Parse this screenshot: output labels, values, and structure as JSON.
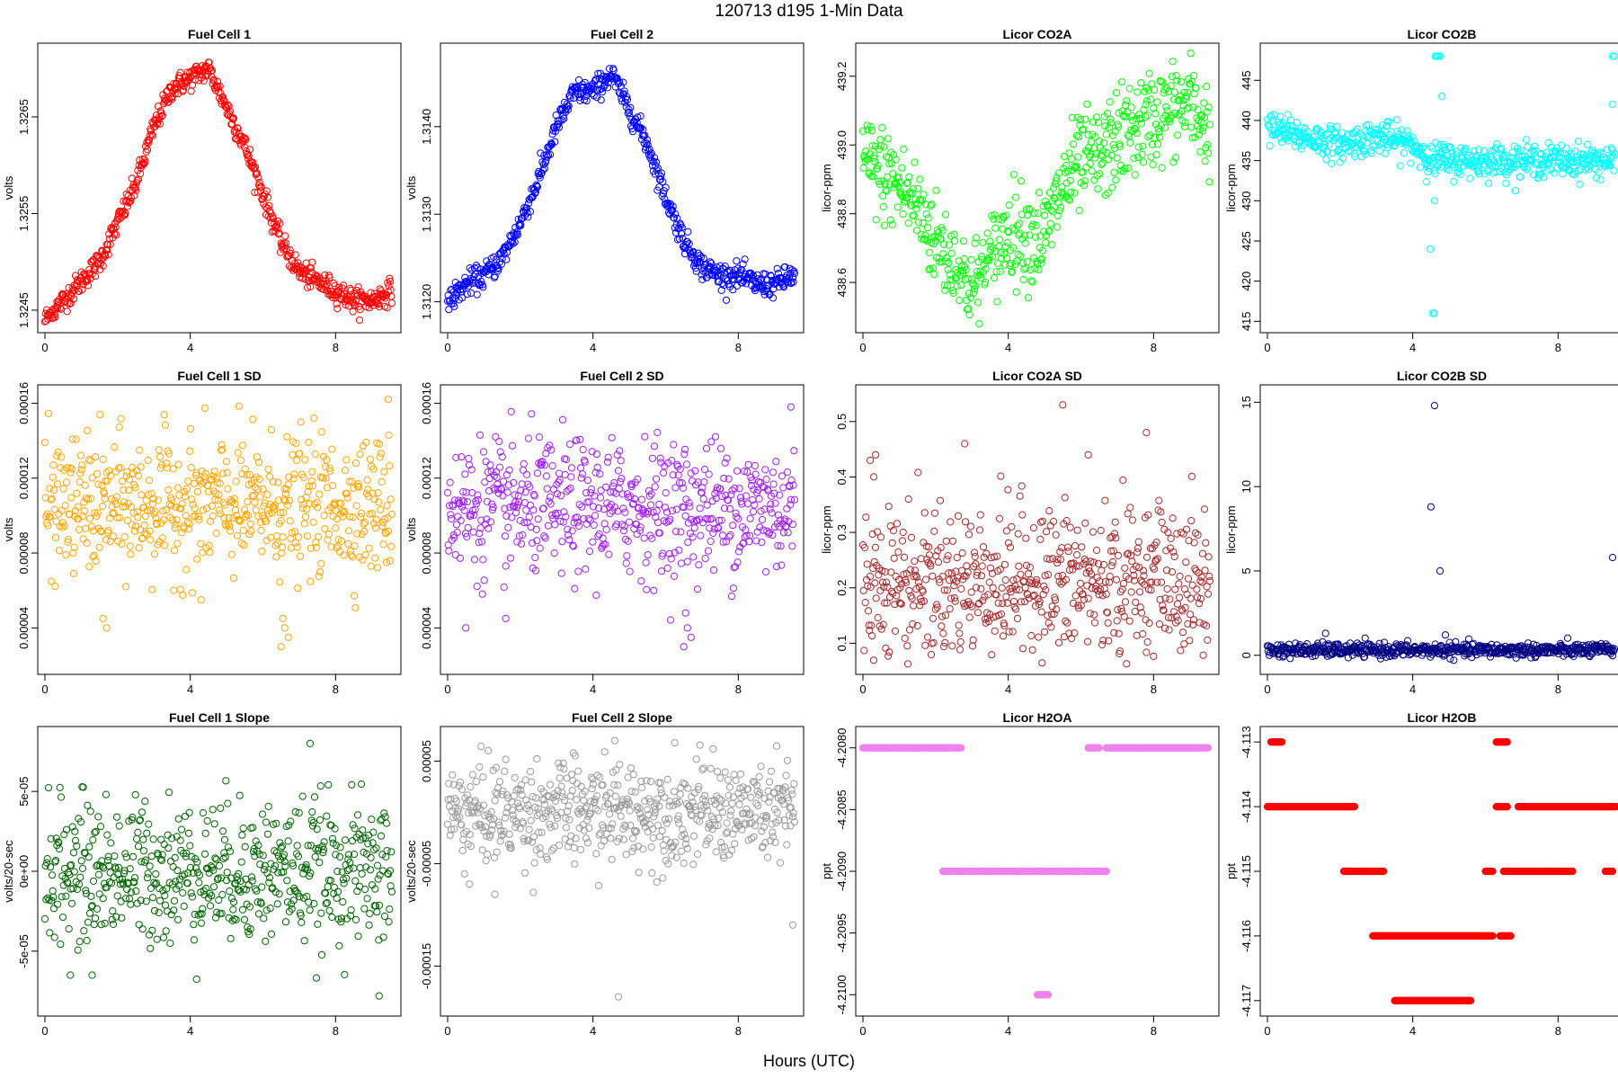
{
  "figure": {
    "title": "120713   d195   1-Min Data",
    "xlabel": "Hours (UTC)"
  },
  "chart_data": [
    {
      "type": "scatter",
      "title": "Fuel Cell 1",
      "ylabel": "volts",
      "xlim": [
        0,
        9.6
      ],
      "ylim": [
        1.32436,
        1.32717
      ],
      "xticks": [
        "0",
        "4",
        "8"
      ],
      "yticks": [
        1.3245,
        1.3255,
        1.3265
      ],
      "ytick_labels": [
        "1.3245",
        "1.3255",
        "1.3265"
      ],
      "color": "#ff0000",
      "series": [
        {
          "name": "Fuel Cell 1",
          "x": [
            0,
            0.5,
            1.0,
            1.5,
            2.0,
            2.5,
            3.0,
            3.5,
            4.0,
            4.5,
            5.0,
            5.5,
            6.0,
            6.5,
            7.0,
            7.5,
            8.0,
            8.5,
            9.0,
            9.5
          ],
          "y": [
            1.3244,
            1.3246,
            1.3248,
            1.325,
            1.3254,
            1.3258,
            1.3264,
            1.3268,
            1.3269,
            1.327,
            1.3266,
            1.3262,
            1.3257,
            1.3252,
            1.3249,
            1.3248,
            1.3247,
            1.3246,
            1.3246,
            1.3247
          ],
          "noise": 6e-05
        }
      ]
    },
    {
      "type": "scatter",
      "title": "Fuel Cell 2",
      "ylabel": "volts",
      "xlim": [
        0,
        9.6
      ],
      "ylim": [
        1.31175,
        1.31485
      ],
      "xticks": [
        "0",
        "4",
        "8"
      ],
      "yticks": [
        1.312,
        1.313,
        1.314
      ],
      "ytick_labels": [
        "1.3120",
        "1.3130",
        "1.3140"
      ],
      "color": "#0000ff",
      "series": [
        {
          "name": "Fuel Cell 2",
          "x": [
            0,
            0.5,
            1.0,
            1.5,
            2.0,
            2.5,
            3.0,
            3.5,
            4.0,
            4.5,
            5.0,
            5.5,
            6.0,
            6.5,
            7.0,
            7.5,
            8.0,
            8.5,
            9.0,
            9.5
          ],
          "y": [
            1.312,
            1.3122,
            1.3123,
            1.3125,
            1.3129,
            1.3134,
            1.314,
            1.3144,
            1.3144,
            1.3146,
            1.3142,
            1.3138,
            1.3132,
            1.3127,
            1.3124,
            1.3123,
            1.3123,
            1.3122,
            1.3122,
            1.3123
          ],
          "noise": 7e-05
        }
      ]
    },
    {
      "type": "scatter",
      "title": "Licor CO2A",
      "ylabel": "licor-ppm",
      "xlim": [
        0,
        9.6
      ],
      "ylim": [
        438.48,
        439.27
      ],
      "xticks": [
        "0",
        "4",
        "8"
      ],
      "yticks": [
        438.6,
        438.8,
        439.0,
        439.2
      ],
      "ytick_labels": [
        "438.6",
        "438.8",
        "439.0",
        "439.2"
      ],
      "color": "#00ff00",
      "series": [
        {
          "name": "Licor CO2A",
          "x": [
            0,
            0.5,
            1.0,
            1.5,
            2.0,
            2.5,
            3.0,
            3.5,
            4.0,
            4.5,
            5.0,
            5.5,
            6.0,
            6.5,
            7.0,
            7.5,
            8.0,
            8.5,
            9.0,
            9.5
          ],
          "y": [
            438.95,
            438.92,
            438.88,
            438.82,
            438.72,
            438.66,
            438.58,
            438.66,
            438.75,
            438.74,
            438.73,
            438.88,
            438.95,
            438.96,
            439.02,
            439.05,
            439.08,
            439.1,
            439.12,
            439.05
          ],
          "noise": 0.07
        }
      ]
    },
    {
      "type": "scatter",
      "title": "Licor CO2B",
      "ylabel": "licor-ppm",
      "xlim": [
        0,
        9.6
      ],
      "ylim": [
        414.7,
        448.5
      ],
      "xticks": [
        "0",
        "4",
        "8"
      ],
      "yticks": [
        415,
        420,
        425,
        430,
        435,
        440,
        445
      ],
      "ytick_labels": [
        "415",
        "420",
        "425",
        "430",
        "435",
        "440",
        "445"
      ],
      "color": "#00ffff",
      "series": [
        {
          "name": "Licor CO2B",
          "x": [
            0,
            1,
            2,
            3,
            4,
            4.5,
            4.6,
            5,
            6,
            7,
            8,
            9,
            9.5
          ],
          "y": [
            439,
            438,
            437,
            438,
            437,
            435,
            435,
            435,
            435,
            435,
            435,
            435,
            435
          ],
          "noise": 1.0
        }
      ],
      "outliers": [
        [
          4.48,
          424
        ],
        [
          4.55,
          416
        ],
        [
          4.6,
          416
        ],
        [
          4.62,
          448
        ],
        [
          4.65,
          448
        ],
        [
          4.68,
          448
        ],
        [
          4.72,
          448
        ],
        [
          4.76,
          448
        ],
        [
          4.6,
          430
        ],
        [
          4.8,
          443
        ],
        [
          4.75,
          437
        ],
        [
          4.85,
          437
        ],
        [
          9.5,
          448
        ],
        [
          9.55,
          448
        ],
        [
          9.5,
          442
        ]
      ]
    },
    {
      "type": "scatter",
      "title": "Fuel Cell 1 SD",
      "ylabel": "volts",
      "xlim": [
        0,
        9.6
      ],
      "ylim": [
        2e-05,
        0.000165
      ],
      "xticks": [
        "0",
        "4",
        "8"
      ],
      "yticks": [
        4e-05,
        8e-05,
        0.00012,
        0.00016
      ],
      "ytick_labels": [
        "0.00004",
        "0.00008",
        "0.00012",
        "0.00016"
      ],
      "color": "#ffa500",
      "series": [
        {
          "name": "Fuel Cell 1 SD",
          "mean": 0.000105,
          "noise": 1.8e-05
        }
      ],
      "outliers": [
        [
          6.5,
          3e-05
        ],
        [
          6.6,
          4e-05
        ],
        [
          6.7,
          3.5e-05
        ],
        [
          6.55,
          4.5e-05
        ],
        [
          1.6,
          4.5e-05
        ],
        [
          1.7,
          4e-05
        ],
        [
          9.45,
          0.000162
        ],
        [
          4.3,
          5.5e-05
        ]
      ]
    },
    {
      "type": "scatter",
      "title": "Fuel Cell 2 SD",
      "ylabel": "volts",
      "xlim": [
        0,
        9.6
      ],
      "ylim": [
        2e-05,
        0.000165
      ],
      "xticks": [
        "0",
        "4",
        "8"
      ],
      "yticks": [
        4e-05,
        8e-05,
        0.00012,
        0.00016
      ],
      "ytick_labels": [
        "0.00004",
        "0.00008",
        "0.00012",
        "0.00016"
      ],
      "color": "#a020f0",
      "series": [
        {
          "name": "Fuel Cell 2 SD",
          "mean": 0.000104,
          "noise": 1.8e-05
        }
      ],
      "outliers": [
        [
          6.5,
          3e-05
        ],
        [
          6.6,
          4e-05
        ],
        [
          6.7,
          3.5e-05
        ],
        [
          6.55,
          4.8e-05
        ],
        [
          1.6,
          4.5e-05
        ],
        [
          0.5,
          4e-05
        ],
        [
          9.45,
          0.000158
        ]
      ]
    },
    {
      "type": "scatter",
      "title": "Licor CO2A SD",
      "ylabel": "licor-ppm",
      "xlim": [
        0,
        9.6
      ],
      "ylim": [
        0.06,
        0.55
      ],
      "xticks": [
        "0",
        "4",
        "8"
      ],
      "yticks": [
        0.1,
        0.2,
        0.3,
        0.4,
        0.5
      ],
      "ytick_labels": [
        "0.1",
        "0.2",
        "0.3",
        "0.4",
        "0.5"
      ],
      "color": "#a52a2a",
      "series": [
        {
          "name": "Licor CO2A SD",
          "mean": 0.21,
          "noise": 0.07
        }
      ],
      "outliers": [
        [
          5.5,
          0.53
        ],
        [
          0.2,
          0.43
        ],
        [
          0.3,
          0.4
        ],
        [
          0.35,
          0.44
        ],
        [
          2.8,
          0.46
        ],
        [
          7.8,
          0.48
        ],
        [
          6.2,
          0.44
        ]
      ]
    },
    {
      "type": "scatter",
      "title": "Licor CO2B SD",
      "ylabel": "licor-ppm",
      "xlim": [
        0,
        9.6
      ],
      "ylim": [
        -0.6,
        15.5
      ],
      "xticks": [
        "0",
        "4",
        "8"
      ],
      "yticks": [
        0,
        5,
        10,
        15
      ],
      "ytick_labels": [
        "0",
        "5",
        "10",
        "15"
      ],
      "color": "#000080",
      "series": [
        {
          "name": "Licor CO2B SD",
          "mean": 0.3,
          "noise": 0.2
        }
      ],
      "outliers": [
        [
          4.6,
          14.8
        ],
        [
          4.5,
          8.8
        ],
        [
          4.75,
          5.0
        ],
        [
          9.5,
          5.8
        ],
        [
          4.9,
          1.2
        ],
        [
          1.6,
          1.3
        ]
      ]
    },
    {
      "type": "scatter",
      "title": "Fuel Cell 1 Slope",
      "ylabel": "volts/20-sec",
      "xlim": [
        0,
        9.6
      ],
      "ylim": [
        -8.5e-05,
        8.5e-05
      ],
      "xticks": [
        "0",
        "4",
        "8"
      ],
      "yticks": [
        -5e-05,
        0,
        5e-05
      ],
      "ytick_labels": [
        "-5e-05",
        "0e+00",
        "5e-05"
      ],
      "color": "#006400",
      "series": [
        {
          "name": "Fuel Cell 1 Slope",
          "mean": 0,
          "noise": 2.2e-05
        }
      ],
      "outliers": [
        [
          7.3,
          8e-05
        ],
        [
          9.2,
          -7.8e-05
        ],
        [
          0.7,
          -6.5e-05
        ],
        [
          1.3,
          -6.5e-05
        ]
      ]
    },
    {
      "type": "scatter",
      "title": "Fuel Cell 2 Slope",
      "ylabel": "volts/20-sec",
      "xlim": [
        0,
        9.6
      ],
      "ylim": [
        -0.00019,
        7.5e-05
      ],
      "xticks": [
        "0",
        "4",
        "8"
      ],
      "yticks": [
        -0.00015,
        -5e-05,
        5e-05
      ],
      "ytick_labels": [
        "-0.00015",
        "-0.00005",
        "0.00005"
      ],
      "color": "#999999",
      "series": [
        {
          "name": "Fuel Cell 2 Slope",
          "mean": 0,
          "noise": 2.5e-05
        }
      ],
      "outliers": [
        [
          4.6,
          7e-05
        ],
        [
          4.7,
          -0.00018
        ],
        [
          9.5,
          -0.00011
        ],
        [
          0.6,
          -7e-05
        ],
        [
          1.3,
          -8e-05
        ]
      ]
    },
    {
      "type": "scatter",
      "title": "Licor H2OA",
      "ylabel": "ppt",
      "xlim": [
        0,
        9.6
      ],
      "ylim": [
        -4.2101,
        -4.2079
      ],
      "xticks": [
        "0",
        "4",
        "8"
      ],
      "yticks": [
        -4.21,
        -4.2095,
        -4.209,
        -4.2085,
        -4.208
      ],
      "ytick_labels": [
        "-4.2100",
        "-4.2095",
        "-4.2090",
        "-4.2085",
        "-4.2080"
      ],
      "color": "#ee82ee",
      "segments": [
        {
          "x0": 0,
          "x1": 2.7,
          "y": -4.208
        },
        {
          "x0": 6.2,
          "x1": 6.5,
          "y": -4.208
        },
        {
          "x0": 6.7,
          "x1": 9.5,
          "y": -4.208
        },
        {
          "x0": 2.2,
          "x1": 6.0,
          "y": -4.209
        },
        {
          "x0": 6.1,
          "x1": 6.7,
          "y": -4.209
        },
        {
          "x0": 4.8,
          "x1": 5.1,
          "y": -4.21
        }
      ]
    },
    {
      "type": "scatter",
      "title": "Licor H2OB",
      "ylabel": "ppt",
      "xlim": [
        0,
        9.6
      ],
      "ylim": [
        -4.1171,
        -4.1129
      ],
      "xticks": [
        "0",
        "4",
        "8"
      ],
      "yticks": [
        -4.117,
        -4.116,
        -4.115,
        -4.114,
        -4.113
      ],
      "ytick_labels": [
        "-4.117",
        "-4.116",
        "-4.115",
        "-4.114",
        "-4.113"
      ],
      "color": "#ff0000",
      "segments": [
        {
          "x0": 0.1,
          "x1": 0.4,
          "y": -4.113
        },
        {
          "x0": 6.3,
          "x1": 6.6,
          "y": -4.113
        },
        {
          "x0": 0,
          "x1": 2.4,
          "y": -4.114
        },
        {
          "x0": 6.3,
          "x1": 6.6,
          "y": -4.114
        },
        {
          "x0": 6.9,
          "x1": 9.6,
          "y": -4.114
        },
        {
          "x0": 2.1,
          "x1": 3.2,
          "y": -4.115
        },
        {
          "x0": 6.0,
          "x1": 6.2,
          "y": -4.115
        },
        {
          "x0": 6.5,
          "x1": 8.4,
          "y": -4.115
        },
        {
          "x0": 9.3,
          "x1": 9.5,
          "y": -4.115
        },
        {
          "x0": 2.9,
          "x1": 6.2,
          "y": -4.116
        },
        {
          "x0": 6.4,
          "x1": 6.7,
          "y": -4.116
        },
        {
          "x0": 3.5,
          "x1": 5.6,
          "y": -4.117
        }
      ]
    }
  ]
}
